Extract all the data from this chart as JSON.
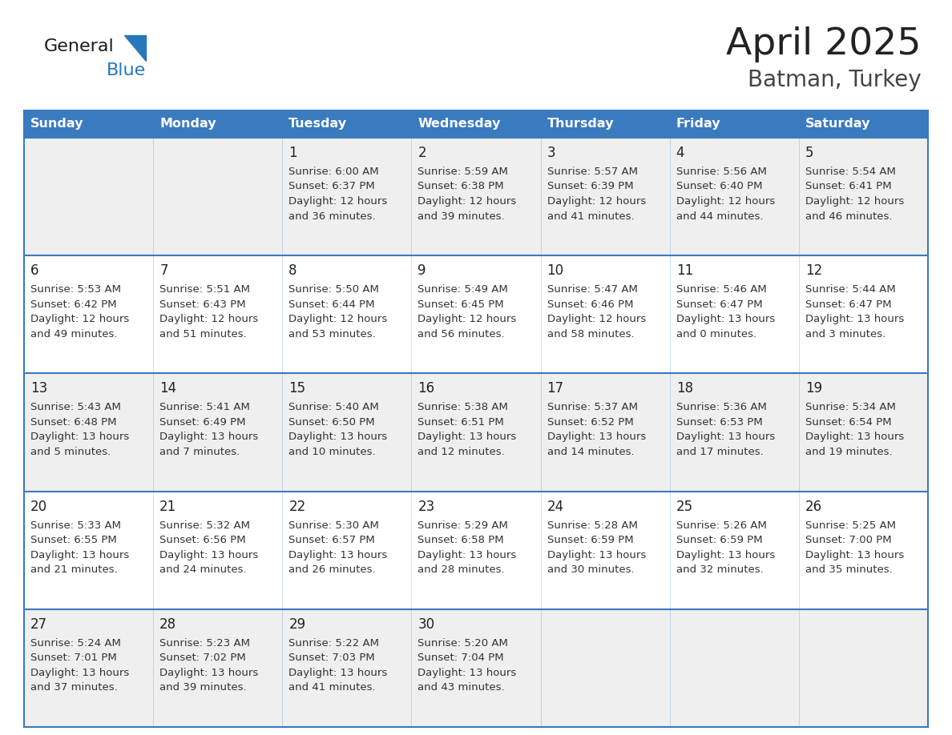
{
  "title": "April 2025",
  "subtitle": "Batman, Turkey",
  "days_of_week": [
    "Sunday",
    "Monday",
    "Tuesday",
    "Wednesday",
    "Thursday",
    "Friday",
    "Saturday"
  ],
  "header_bg": "#3a7abf",
  "header_text_color": "#ffffff",
  "cell_bg_odd": "#efefef",
  "cell_bg_even": "#ffffff",
  "cell_text_color": "#333333",
  "day_num_color": "#222222",
  "grid_color": "#3a7abf",
  "title_color": "#222222",
  "subtitle_color": "#444444",
  "logo_general_color": "#1a1a1a",
  "logo_blue_color": "#2777bb",
  "weeks": [
    [
      null,
      null,
      {
        "day": 1,
        "sunrise": "6:00 AM",
        "sunset": "6:37 PM",
        "dl1": "Daylight: 12 hours",
        "dl2": "and 36 minutes."
      },
      {
        "day": 2,
        "sunrise": "5:59 AM",
        "sunset": "6:38 PM",
        "dl1": "Daylight: 12 hours",
        "dl2": "and 39 minutes."
      },
      {
        "day": 3,
        "sunrise": "5:57 AM",
        "sunset": "6:39 PM",
        "dl1": "Daylight: 12 hours",
        "dl2": "and 41 minutes."
      },
      {
        "day": 4,
        "sunrise": "5:56 AM",
        "sunset": "6:40 PM",
        "dl1": "Daylight: 12 hours",
        "dl2": "and 44 minutes."
      },
      {
        "day": 5,
        "sunrise": "5:54 AM",
        "sunset": "6:41 PM",
        "dl1": "Daylight: 12 hours",
        "dl2": "and 46 minutes."
      }
    ],
    [
      {
        "day": 6,
        "sunrise": "5:53 AM",
        "sunset": "6:42 PM",
        "dl1": "Daylight: 12 hours",
        "dl2": "and 49 minutes."
      },
      {
        "day": 7,
        "sunrise": "5:51 AM",
        "sunset": "6:43 PM",
        "dl1": "Daylight: 12 hours",
        "dl2": "and 51 minutes."
      },
      {
        "day": 8,
        "sunrise": "5:50 AM",
        "sunset": "6:44 PM",
        "dl1": "Daylight: 12 hours",
        "dl2": "and 53 minutes."
      },
      {
        "day": 9,
        "sunrise": "5:49 AM",
        "sunset": "6:45 PM",
        "dl1": "Daylight: 12 hours",
        "dl2": "and 56 minutes."
      },
      {
        "day": 10,
        "sunrise": "5:47 AM",
        "sunset": "6:46 PM",
        "dl1": "Daylight: 12 hours",
        "dl2": "and 58 minutes."
      },
      {
        "day": 11,
        "sunrise": "5:46 AM",
        "sunset": "6:47 PM",
        "dl1": "Daylight: 13 hours",
        "dl2": "and 0 minutes."
      },
      {
        "day": 12,
        "sunrise": "5:44 AM",
        "sunset": "6:47 PM",
        "dl1": "Daylight: 13 hours",
        "dl2": "and 3 minutes."
      }
    ],
    [
      {
        "day": 13,
        "sunrise": "5:43 AM",
        "sunset": "6:48 PM",
        "dl1": "Daylight: 13 hours",
        "dl2": "and 5 minutes."
      },
      {
        "day": 14,
        "sunrise": "5:41 AM",
        "sunset": "6:49 PM",
        "dl1": "Daylight: 13 hours",
        "dl2": "and 7 minutes."
      },
      {
        "day": 15,
        "sunrise": "5:40 AM",
        "sunset": "6:50 PM",
        "dl1": "Daylight: 13 hours",
        "dl2": "and 10 minutes."
      },
      {
        "day": 16,
        "sunrise": "5:38 AM",
        "sunset": "6:51 PM",
        "dl1": "Daylight: 13 hours",
        "dl2": "and 12 minutes."
      },
      {
        "day": 17,
        "sunrise": "5:37 AM",
        "sunset": "6:52 PM",
        "dl1": "Daylight: 13 hours",
        "dl2": "and 14 minutes."
      },
      {
        "day": 18,
        "sunrise": "5:36 AM",
        "sunset": "6:53 PM",
        "dl1": "Daylight: 13 hours",
        "dl2": "and 17 minutes."
      },
      {
        "day": 19,
        "sunrise": "5:34 AM",
        "sunset": "6:54 PM",
        "dl1": "Daylight: 13 hours",
        "dl2": "and 19 minutes."
      }
    ],
    [
      {
        "day": 20,
        "sunrise": "5:33 AM",
        "sunset": "6:55 PM",
        "dl1": "Daylight: 13 hours",
        "dl2": "and 21 minutes."
      },
      {
        "day": 21,
        "sunrise": "5:32 AM",
        "sunset": "6:56 PM",
        "dl1": "Daylight: 13 hours",
        "dl2": "and 24 minutes."
      },
      {
        "day": 22,
        "sunrise": "5:30 AM",
        "sunset": "6:57 PM",
        "dl1": "Daylight: 13 hours",
        "dl2": "and 26 minutes."
      },
      {
        "day": 23,
        "sunrise": "5:29 AM",
        "sunset": "6:58 PM",
        "dl1": "Daylight: 13 hours",
        "dl2": "and 28 minutes."
      },
      {
        "day": 24,
        "sunrise": "5:28 AM",
        "sunset": "6:59 PM",
        "dl1": "Daylight: 13 hours",
        "dl2": "and 30 minutes."
      },
      {
        "day": 25,
        "sunrise": "5:26 AM",
        "sunset": "6:59 PM",
        "dl1": "Daylight: 13 hours",
        "dl2": "and 32 minutes."
      },
      {
        "day": 26,
        "sunrise": "5:25 AM",
        "sunset": "7:00 PM",
        "dl1": "Daylight: 13 hours",
        "dl2": "and 35 minutes."
      }
    ],
    [
      {
        "day": 27,
        "sunrise": "5:24 AM",
        "sunset": "7:01 PM",
        "dl1": "Daylight: 13 hours",
        "dl2": "and 37 minutes."
      },
      {
        "day": 28,
        "sunrise": "5:23 AM",
        "sunset": "7:02 PM",
        "dl1": "Daylight: 13 hours",
        "dl2": "and 39 minutes."
      },
      {
        "day": 29,
        "sunrise": "5:22 AM",
        "sunset": "7:03 PM",
        "dl1": "Daylight: 13 hours",
        "dl2": "and 41 minutes."
      },
      {
        "day": 30,
        "sunrise": "5:20 AM",
        "sunset": "7:04 PM",
        "dl1": "Daylight: 13 hours",
        "dl2": "and 43 minutes."
      },
      null,
      null,
      null
    ]
  ]
}
